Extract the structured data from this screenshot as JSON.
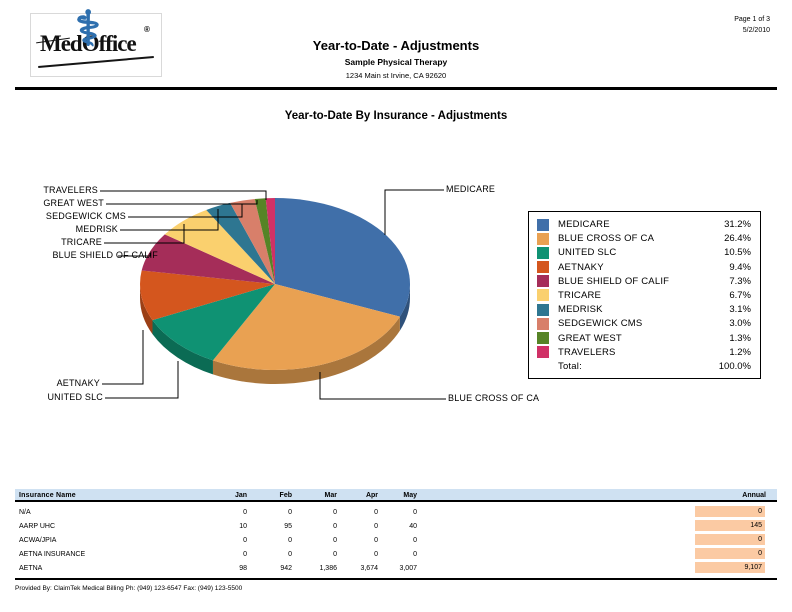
{
  "page": {
    "header": {
      "logo_text": "MedOffice",
      "logo_reg": "®",
      "title": "Year-to-Date - Adjustments",
      "subtitle": "Sample Physical Therapy",
      "address": "1234 Main st Irvine, CA 92620",
      "page_info": "Page 1 of 3",
      "date": "5/2/2010"
    },
    "chart_title": "Year-to-Date By Insurance - Adjustments",
    "footer": "Provided By: ClaimTek Medical Billing    Ph: (949) 123-6547  Fax: (949) 123-5500"
  },
  "chart_data": [
    {
      "type": "pie",
      "style": "3d",
      "title": "Year-to-Date By Insurance - Adjustments",
      "legend_position": "right",
      "slices": [
        {
          "label": "MEDICARE",
          "pct": 31.2,
          "color": "#406fa9"
        },
        {
          "label": "BLUE CROSS OF CA",
          "pct": 26.4,
          "color": "#e9a152"
        },
        {
          "label": "UNITED SLC",
          "pct": 10.5,
          "color": "#0f9273"
        },
        {
          "label": "AETNAKY",
          "pct": 9.4,
          "color": "#d4561e"
        },
        {
          "label": "BLUE SHIELD OF CALIF",
          "pct": 7.3,
          "color": "#a52d59"
        },
        {
          "label": "TRICARE",
          "pct": 6.7,
          "color": "#fad06e"
        },
        {
          "label": "MEDRISK",
          "pct": 3.1,
          "color": "#2e7691"
        },
        {
          "label": "SEDGEWICK CMS",
          "pct": 3.0,
          "color": "#d87f6a"
        },
        {
          "label": "GREAT WEST",
          "pct": 1.3,
          "color": "#568426"
        },
        {
          "label": "TRAVELERS",
          "pct": 1.2,
          "color": "#d03166"
        }
      ],
      "total_label": "Total:",
      "total_value": "100.0%"
    },
    {
      "type": "table",
      "columns": [
        "Insurance Name",
        "Jan",
        "Feb",
        "Mar",
        "Apr",
        "May",
        "Annual"
      ],
      "rows": [
        {
          "name": "N/A",
          "values": [
            "0",
            "0",
            "0",
            "0",
            "0"
          ],
          "annual": "0"
        },
        {
          "name": "AARP UHC",
          "values": [
            "10",
            "95",
            "0",
            "0",
            "40"
          ],
          "annual": "145"
        },
        {
          "name": "ACWA/JPIA",
          "values": [
            "0",
            "0",
            "0",
            "0",
            "0"
          ],
          "annual": "0"
        },
        {
          "name": "AETNA INSURANCE",
          "values": [
            "0",
            "0",
            "0",
            "0",
            "0"
          ],
          "annual": "0"
        },
        {
          "name": "AETNA",
          "values": [
            "98",
            "942",
            "1,386",
            "3,674",
            "3,007"
          ],
          "annual": "9,107"
        }
      ],
      "annual_highlight_color": "#fbcaa3",
      "header_bg_color": "#cfe1f2"
    }
  ]
}
